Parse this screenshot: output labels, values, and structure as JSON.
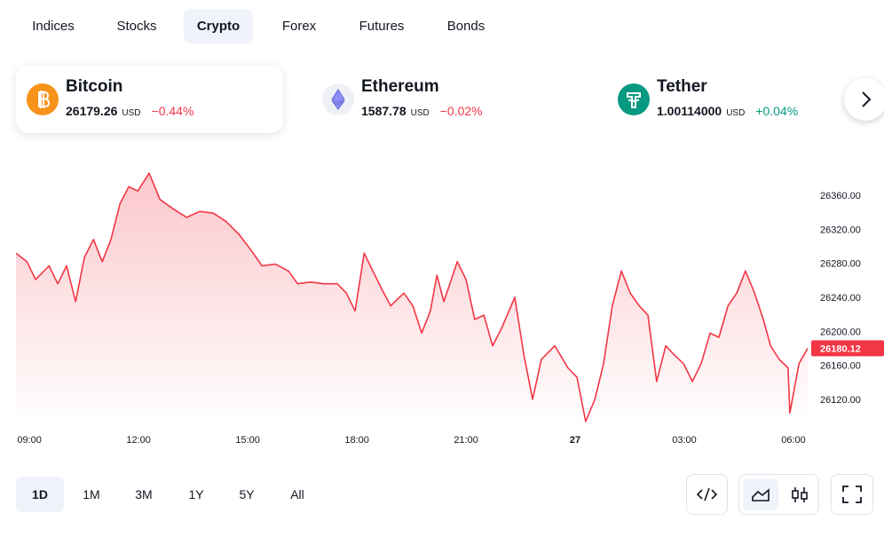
{
  "tabs": {
    "items": [
      "Indices",
      "Stocks",
      "Crypto",
      "Forex",
      "Futures",
      "Bonds"
    ],
    "active": 2
  },
  "cards": [
    {
      "name": "Bitcoin",
      "price": "26179.26",
      "unit": "USD",
      "change": "−0.44%",
      "direction": "down",
      "color": "#f7931a"
    },
    {
      "name": "Ethereum",
      "price": "1587.78",
      "unit": "USD",
      "change": "−0.02%",
      "direction": "down",
      "color": "#eef0f6"
    },
    {
      "name": "Tether",
      "price": "1.00114000",
      "unit": "USD",
      "change": "+0.04%",
      "direction": "up",
      "color": "#089981"
    }
  ],
  "chart_data": {
    "type": "line",
    "color": "#f23645",
    "x": [
      8.63,
      8.93,
      9.17,
      9.54,
      9.78,
      10.02,
      10.27,
      10.51,
      10.76,
      11.0,
      11.24,
      11.49,
      11.73,
      11.98,
      12.29,
      12.59,
      12.95,
      13.32,
      13.68,
      14.05,
      14.41,
      14.78,
      15.15,
      15.39,
      15.76,
      16.12,
      16.37,
      16.73,
      17.1,
      17.46,
      17.71,
      17.95,
      18.2,
      18.44,
      18.68,
      18.93,
      19.29,
      19.54,
      19.78,
      20.02,
      20.2,
      20.39,
      20.76,
      21.0,
      21.24,
      21.49,
      21.73,
      21.98,
      22.34,
      22.59,
      22.83,
      23.07,
      23.44,
      23.8,
      24.05,
      24.29,
      24.54,
      24.78,
      25.02,
      25.27,
      25.51,
      25.76,
      26.0,
      26.24,
      26.49,
      26.73,
      26.98,
      27.22,
      27.46,
      27.71,
      27.95,
      28.2,
      28.44,
      28.68,
      28.93,
      29.17,
      29.37,
      29.61,
      29.85,
      29.9,
      30.15,
      30.39
    ],
    "values": [
      26292,
      26282,
      26261,
      26277,
      26256,
      26277,
      26235,
      26287,
      26308,
      26282,
      26308,
      26350,
      26370,
      26365,
      26386,
      26355,
      26344,
      26334,
      26341,
      26339,
      26329,
      26313,
      26292,
      26277,
      26279,
      26271,
      26256,
      26258,
      26256,
      26256,
      26245,
      26224,
      26292,
      26271,
      26250,
      26230,
      26245,
      26230,
      26198,
      26224,
      26266,
      26235,
      26282,
      26261,
      26214,
      26219,
      26183,
      26204,
      26240,
      26172,
      26120,
      26167,
      26183,
      26157,
      26146,
      26094,
      26120,
      26162,
      26230,
      26271,
      26245,
      26230,
      26219,
      26141,
      26183,
      26172,
      26162,
      26141,
      26162,
      26198,
      26193,
      26230,
      26245,
      26271,
      26245,
      26214,
      26183,
      26167,
      26157,
      26104,
      26162,
      26180.12
    ],
    "last_price": 26180.12,
    "xlim": [
      8.63,
      30.39
    ],
    "xticks": [
      {
        "value": 9,
        "label": "09:00"
      },
      {
        "value": 12,
        "label": "12:00"
      },
      {
        "value": 15,
        "label": "15:00"
      },
      {
        "value": 18,
        "label": "18:00"
      },
      {
        "value": 21,
        "label": "21:00"
      },
      {
        "value": 24,
        "label": "27"
      },
      {
        "value": 27,
        "label": "03:00"
      },
      {
        "value": 30,
        "label": "06:00"
      }
    ],
    "ylim": [
      26090,
      26400
    ],
    "yticks": [
      {
        "value": 26120,
        "label": "26120.00"
      },
      {
        "value": 26160,
        "label": "26160.00"
      },
      {
        "value": 26200,
        "label": "26200.00"
      },
      {
        "value": 26240,
        "label": "26240.00"
      },
      {
        "value": 26280,
        "label": "26280.00"
      },
      {
        "value": 26320,
        "label": "26320.00"
      },
      {
        "value": 26360,
        "label": "26360.00"
      }
    ]
  },
  "ranges": {
    "items": [
      "1D",
      "1M",
      "3M",
      "1Y",
      "5Y",
      "All"
    ],
    "active": 0
  }
}
